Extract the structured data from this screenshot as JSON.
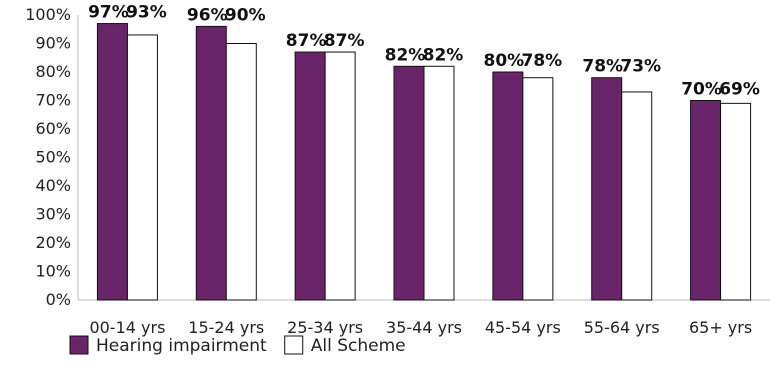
{
  "chart_data": {
    "type": "bar",
    "categories": [
      "00-14 yrs",
      "15-24 yrs",
      "25-34 yrs",
      "35-44 yrs",
      "45-54 yrs",
      "55-64 yrs",
      "65+ yrs"
    ],
    "series": [
      {
        "name": "Hearing impairment",
        "values": [
          97,
          96,
          87,
          82,
          80,
          78,
          70
        ],
        "labels": [
          "97%",
          "96%",
          "87%",
          "82%",
          "80%",
          "78%",
          "70%"
        ],
        "color": "#6a2469"
      },
      {
        "name": "All Scheme",
        "values": [
          93,
          90,
          87,
          82,
          78,
          73,
          69
        ],
        "labels": [
          "93%",
          "90%",
          "87%",
          "82%",
          "78%",
          "73%",
          "69%"
        ],
        "color": "#ffffff"
      }
    ],
    "ylim": [
      0,
      100
    ],
    "yticks": [
      "0%",
      "10%",
      "20%",
      "30%",
      "40%",
      "50%",
      "60%",
      "70%",
      "80%",
      "90%",
      "100%"
    ],
    "xlabel": "",
    "ylabel": "",
    "grid": false,
    "legend": "bottom-left"
  }
}
